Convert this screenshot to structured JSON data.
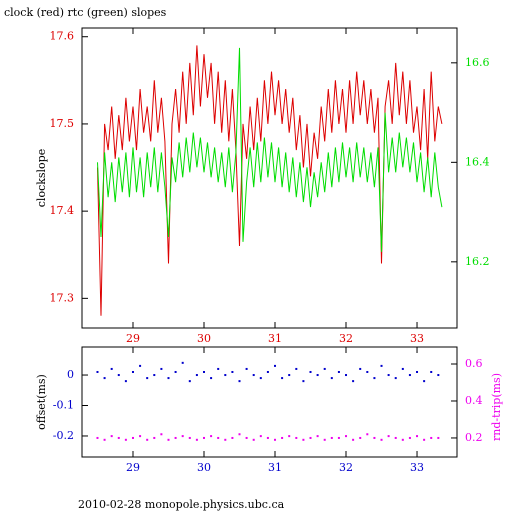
{
  "title": "clock (red) rtc (green) slopes",
  "footer": "2010-02-28  monopole.physics.ubc.ca",
  "chart_data": [
    {
      "type": "line",
      "y_label": "clockslope",
      "xlim": [
        28.282,
        33.563
      ],
      "xticks": [
        29,
        30,
        31,
        32,
        33
      ],
      "ylim": [
        17.266,
        17.61
      ],
      "yticks": [
        17.3,
        17.4,
        17.5,
        17.6
      ],
      "y2lim": [
        16.067,
        16.67
      ],
      "y2ticks": [
        16.2,
        16.4,
        16.6
      ],
      "x": [
        28.5,
        28.55,
        28.6,
        28.65,
        28.7,
        28.75,
        28.8,
        28.85,
        28.9,
        28.95,
        29,
        29.05,
        29.1,
        29.15,
        29.2,
        29.25,
        29.3,
        29.35,
        29.4,
        29.45,
        29.5,
        29.55,
        29.6,
        29.65,
        29.7,
        29.75,
        29.8,
        29.85,
        29.9,
        29.95,
        30,
        30.05,
        30.1,
        30.15,
        30.2,
        30.25,
        30.3,
        30.35,
        30.4,
        30.45,
        30.5,
        30.55,
        30.6,
        30.65,
        30.7,
        30.75,
        30.8,
        30.85,
        30.9,
        30.95,
        31,
        31.05,
        31.1,
        31.15,
        31.2,
        31.25,
        31.3,
        31.35,
        31.4,
        31.45,
        31.5,
        31.55,
        31.6,
        31.65,
        31.7,
        31.75,
        31.8,
        31.85,
        31.9,
        31.95,
        32,
        32.05,
        32.1,
        32.15,
        32.2,
        32.25,
        32.3,
        32.35,
        32.4,
        32.45,
        32.5,
        32.55,
        32.6,
        32.65,
        32.7,
        32.75,
        32.8,
        32.85,
        32.9,
        32.95,
        33,
        33.05,
        33.1,
        33.15,
        33.2,
        33.25,
        33.3,
        33.35
      ],
      "series": [
        {
          "color": "#dd0000",
          "values": [
            17.45,
            17.28,
            17.5,
            17.47,
            17.52,
            17.46,
            17.51,
            17.47,
            17.53,
            17.48,
            17.52,
            17.47,
            17.54,
            17.49,
            17.52,
            17.48,
            17.55,
            17.49,
            17.53,
            17.48,
            17.34,
            17.5,
            17.54,
            17.49,
            17.56,
            17.5,
            17.57,
            17.51,
            17.59,
            17.52,
            17.58,
            17.53,
            17.57,
            17.5,
            17.56,
            17.49,
            17.55,
            17.48,
            17.54,
            17.47,
            17.36,
            17.5,
            17.46,
            17.52,
            17.47,
            17.53,
            17.48,
            17.55,
            17.5,
            17.56,
            17.51,
            17.55,
            17.5,
            17.54,
            17.49,
            17.53,
            17.47,
            17.51,
            17.45,
            17.5,
            17.44,
            17.49,
            17.46,
            17.52,
            17.48,
            17.54,
            17.49,
            17.55,
            17.5,
            17.54,
            17.49,
            17.55,
            17.5,
            17.56,
            17.51,
            17.55,
            17.5,
            17.54,
            17.49,
            17.53,
            17.34,
            17.52,
            17.55,
            17.5,
            17.57,
            17.51,
            17.56,
            17.5,
            17.55,
            17.49,
            17.52,
            17.47,
            17.54,
            17.46,
            17.56,
            17.48,
            17.52,
            17.5
          ]
        },
        {
          "color": "#00dd00",
          "axis": "y2",
          "values": [
            16.4,
            16.25,
            16.42,
            16.33,
            16.4,
            16.32,
            16.41,
            16.34,
            16.42,
            16.33,
            16.43,
            16.34,
            16.41,
            16.33,
            16.42,
            16.35,
            16.43,
            16.34,
            16.42,
            16.35,
            16.25,
            16.41,
            16.36,
            16.44,
            16.37,
            16.45,
            16.38,
            16.46,
            16.39,
            16.45,
            16.38,
            16.44,
            16.37,
            16.43,
            16.36,
            16.42,
            16.35,
            16.43,
            16.34,
            16.42,
            16.63,
            16.24,
            16.36,
            16.43,
            16.35,
            16.44,
            16.36,
            16.45,
            16.37,
            16.44,
            16.36,
            16.43,
            16.35,
            16.42,
            16.34,
            16.41,
            16.33,
            16.4,
            16.32,
            16.39,
            16.31,
            16.38,
            16.33,
            16.4,
            16.34,
            16.42,
            16.35,
            16.43,
            16.36,
            16.44,
            16.37,
            16.43,
            16.36,
            16.44,
            16.37,
            16.43,
            16.36,
            16.42,
            16.35,
            16.43,
            16.22,
            16.5,
            16.38,
            16.45,
            16.38,
            16.46,
            16.39,
            16.45,
            16.38,
            16.44,
            16.36,
            16.42,
            16.34,
            16.41,
            16.33,
            16.42,
            16.35,
            16.31
          ]
        }
      ]
    },
    {
      "type": "scatter",
      "y_label": "offset(ms)",
      "y2_label": "rnd-trip(ms)",
      "xlim": [
        28.282,
        33.563
      ],
      "xticks": [
        29,
        30,
        31,
        32,
        33
      ],
      "ylim": [
        -0.269,
        0.092
      ],
      "yticks": [
        -0.2,
        -0.1,
        0
      ],
      "y2lim": [
        0.097,
        0.692
      ],
      "y2ticks": [
        0.2,
        0.4,
        0.6
      ],
      "x": [
        28.5,
        28.6,
        28.7,
        28.8,
        28.9,
        29,
        29.1,
        29.2,
        29.3,
        29.4,
        29.5,
        29.6,
        29.7,
        29.8,
        29.9,
        30,
        30.1,
        30.2,
        30.3,
        30.4,
        30.5,
        30.6,
        30.7,
        30.8,
        30.9,
        31,
        31.1,
        31.2,
        31.3,
        31.4,
        31.5,
        31.6,
        31.7,
        31.8,
        31.9,
        32,
        32.1,
        32.2,
        32.3,
        32.4,
        32.5,
        32.6,
        32.7,
        32.8,
        32.9,
        33,
        33.1,
        33.2,
        33.3
      ],
      "series": [
        {
          "color": "#0000cc",
          "values": [
            0.01,
            -0.01,
            0.02,
            0,
            -0.02,
            0.01,
            0.03,
            -0.01,
            0,
            0.02,
            -0.01,
            0.01,
            0.04,
            -0.02,
            0,
            0.01,
            -0.01,
            0.02,
            0,
            0.01,
            -0.02,
            0.02,
            0,
            -0.01,
            0.01,
            0.03,
            -0.01,
            0,
            0.02,
            -0.02,
            0.01,
            0,
            0.02,
            -0.01,
            0.01,
            0,
            -0.02,
            0.02,
            0.01,
            -0.01,
            0.03,
            0,
            -0.01,
            0.02,
            0,
            0.01,
            -0.02,
            0.01,
            0
          ]
        },
        {
          "color": "#ee00ee",
          "axis": "y2",
          "values": [
            0.2,
            0.19,
            0.21,
            0.2,
            0.19,
            0.2,
            0.21,
            0.19,
            0.2,
            0.22,
            0.19,
            0.2,
            0.21,
            0.2,
            0.19,
            0.2,
            0.21,
            0.2,
            0.19,
            0.2,
            0.22,
            0.2,
            0.19,
            0.21,
            0.2,
            0.19,
            0.2,
            0.21,
            0.2,
            0.19,
            0.2,
            0.21,
            0.19,
            0.2,
            0.2,
            0.21,
            0.19,
            0.2,
            0.22,
            0.2,
            0.19,
            0.21,
            0.2,
            0.19,
            0.2,
            0.21,
            0.19,
            0.2,
            0.2
          ]
        }
      ]
    }
  ]
}
